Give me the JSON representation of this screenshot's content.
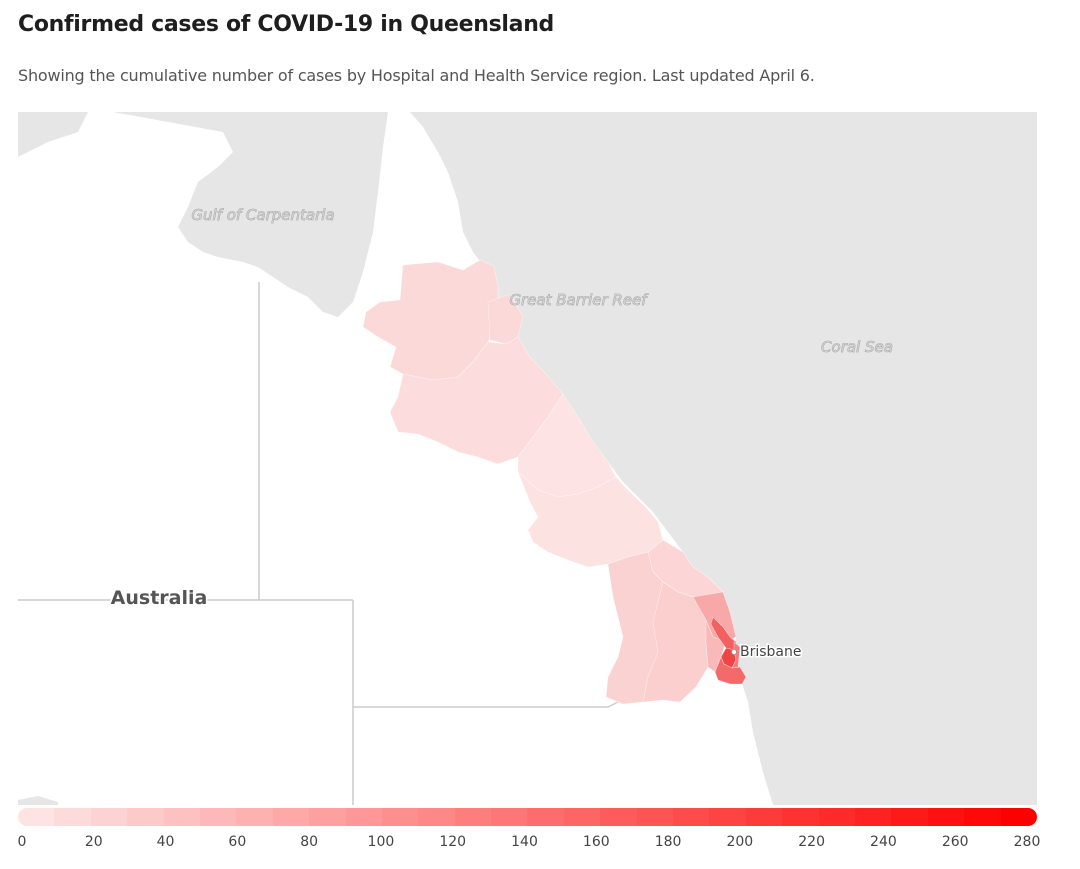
{
  "header": {
    "title": "Confirmed cases of COVID-19 in Queensland",
    "subtitle": "Showing the cumulative number of cases by Hospital and Health Service region. Last updated April 6."
  },
  "map": {
    "labels": {
      "gulf": "Gulf of Carpentaria",
      "reef": "Great Barrier Reef",
      "coral_sea": "Coral Sea",
      "australia": "Australia",
      "brisbane": "Brisbane"
    },
    "colors": {
      "water": "#e6e6e6",
      "land": "#ffffff",
      "border": "#d0d0d0"
    }
  },
  "legend": {
    "min": 0,
    "max": 280,
    "ticks": [
      "0",
      "20",
      "40",
      "60",
      "80",
      "100",
      "120",
      "140",
      "160",
      "180",
      "200",
      "220",
      "240",
      "260",
      "280"
    ],
    "color_low": "#fde3e3",
    "color_high": "#ff0000"
  }
}
